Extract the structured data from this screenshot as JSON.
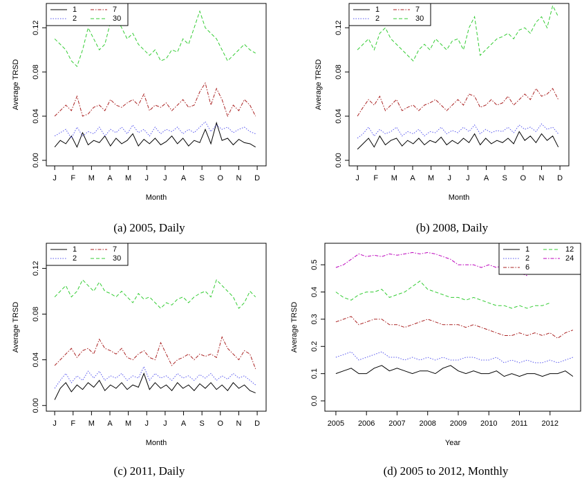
{
  "chart_data": [
    {
      "type": "line",
      "caption": "(a) 2005, Daily",
      "xlabel": "Month",
      "ylabel": "Average TRSD",
      "legend": "top-left",
      "xlim": [
        -14,
        380
      ],
      "ylim": [
        -0.005,
        0.142
      ],
      "xticks": [
        {
          "value": 1,
          "label": "J"
        },
        {
          "value": 34,
          "label": "F"
        },
        {
          "value": 67,
          "label": "M"
        },
        {
          "value": 100,
          "label": "A"
        },
        {
          "value": 133,
          "label": "M"
        },
        {
          "value": 166,
          "label": "J"
        },
        {
          "value": 199,
          "label": "J"
        },
        {
          "value": 232,
          "label": "A"
        },
        {
          "value": 265,
          "label": "S"
        },
        {
          "value": 298,
          "label": "O"
        },
        {
          "value": 331,
          "label": "N"
        },
        {
          "value": 364,
          "label": "D"
        }
      ],
      "yticks": [
        {
          "value": 0,
          "label": "0.00"
        },
        0.04,
        0.08,
        0.12
      ],
      "x": [
        1,
        11,
        21,
        31,
        41,
        51,
        61,
        71,
        81,
        91,
        101,
        111,
        121,
        131,
        141,
        151,
        161,
        171,
        181,
        191,
        201,
        211,
        221,
        231,
        241,
        251,
        261,
        271,
        281,
        291,
        301,
        311,
        321,
        331,
        341,
        351,
        361
      ],
      "series": [
        {
          "name": "1",
          "color": "#000000",
          "linestyle": "solid",
          "values": [
            0.012,
            0.018,
            0.015,
            0.022,
            0.012,
            0.025,
            0.014,
            0.018,
            0.016,
            0.022,
            0.013,
            0.02,
            0.015,
            0.018,
            0.024,
            0.013,
            0.019,
            0.015,
            0.02,
            0.014,
            0.017,
            0.022,
            0.015,
            0.02,
            0.013,
            0.018,
            0.016,
            0.028,
            0.015,
            0.034,
            0.018,
            0.02,
            0.014,
            0.019,
            0.016,
            0.015,
            0.012
          ]
        },
        {
          "name": "2",
          "color": "#5555ee",
          "linestyle": "dotted",
          "values": [
            0.022,
            0.025,
            0.028,
            0.02,
            0.03,
            0.022,
            0.026,
            0.024,
            0.03,
            0.022,
            0.028,
            0.025,
            0.03,
            0.024,
            0.032,
            0.025,
            0.028,
            0.022,
            0.03,
            0.024,
            0.028,
            0.026,
            0.03,
            0.024,
            0.028,
            0.025,
            0.03,
            0.035,
            0.026,
            0.032,
            0.028,
            0.03,
            0.025,
            0.028,
            0.03,
            0.026,
            0.024
          ]
        },
        {
          "name": "7",
          "color": "#aa2222",
          "linestyle": "dashdot",
          "values": [
            0.04,
            0.045,
            0.05,
            0.045,
            0.058,
            0.04,
            0.042,
            0.048,
            0.05,
            0.045,
            0.055,
            0.05,
            0.048,
            0.052,
            0.055,
            0.05,
            0.06,
            0.045,
            0.05,
            0.048,
            0.052,
            0.045,
            0.05,
            0.055,
            0.048,
            0.05,
            0.062,
            0.07,
            0.05,
            0.065,
            0.055,
            0.04,
            0.05,
            0.045,
            0.055,
            0.05,
            0.04
          ]
        },
        {
          "name": "30",
          "color": "#33cc33",
          "linestyle": "dashed",
          "values": [
            0.11,
            0.105,
            0.1,
            0.09,
            0.085,
            0.1,
            0.12,
            0.11,
            0.1,
            0.105,
            0.125,
            0.13,
            0.12,
            0.11,
            0.115,
            0.105,
            0.1,
            0.095,
            0.1,
            0.09,
            0.092,
            0.1,
            0.098,
            0.11,
            0.105,
            0.12,
            0.135,
            0.12,
            0.115,
            0.11,
            0.1,
            0.09,
            0.095,
            0.1,
            0.105,
            0.1,
            0.097
          ]
        }
      ]
    },
    {
      "type": "line",
      "caption": "(b) 2008, Daily",
      "xlabel": "Month",
      "ylabel": "Average TRSD",
      "legend": "top-left",
      "xlim": [
        -14,
        380
      ],
      "ylim": [
        -0.005,
        0.142
      ],
      "xticks": [
        {
          "value": 1,
          "label": "J"
        },
        {
          "value": 34,
          "label": "F"
        },
        {
          "value": 67,
          "label": "M"
        },
        {
          "value": 100,
          "label": "A"
        },
        {
          "value": 133,
          "label": "M"
        },
        {
          "value": 166,
          "label": "J"
        },
        {
          "value": 199,
          "label": "J"
        },
        {
          "value": 232,
          "label": "A"
        },
        {
          "value": 265,
          "label": "S"
        },
        {
          "value": 298,
          "label": "O"
        },
        {
          "value": 331,
          "label": "N"
        },
        {
          "value": 364,
          "label": "D"
        }
      ],
      "yticks": [
        {
          "value": 0,
          "label": "0.00"
        },
        0.04,
        0.08,
        0.12
      ],
      "x": [
        1,
        11,
        21,
        31,
        41,
        51,
        61,
        71,
        81,
        91,
        101,
        111,
        121,
        131,
        141,
        151,
        161,
        171,
        181,
        191,
        201,
        211,
        221,
        231,
        241,
        251,
        261,
        271,
        281,
        291,
        301,
        311,
        321,
        331,
        341,
        351,
        361
      ],
      "series": [
        {
          "name": "1",
          "color": "#000000",
          "linestyle": "solid",
          "values": [
            0.01,
            0.015,
            0.02,
            0.012,
            0.022,
            0.014,
            0.018,
            0.02,
            0.013,
            0.018,
            0.015,
            0.02,
            0.014,
            0.018,
            0.016,
            0.021,
            0.014,
            0.018,
            0.015,
            0.02,
            0.016,
            0.024,
            0.014,
            0.02,
            0.015,
            0.018,
            0.016,
            0.02,
            0.015,
            0.026,
            0.018,
            0.022,
            0.016,
            0.024,
            0.018,
            0.022,
            0.012
          ]
        },
        {
          "name": "2",
          "color": "#5555ee",
          "linestyle": "dotted",
          "values": [
            0.02,
            0.024,
            0.03,
            0.022,
            0.028,
            0.024,
            0.026,
            0.03,
            0.022,
            0.026,
            0.024,
            0.028,
            0.022,
            0.026,
            0.025,
            0.03,
            0.024,
            0.027,
            0.025,
            0.03,
            0.026,
            0.032,
            0.024,
            0.028,
            0.025,
            0.027,
            0.026,
            0.03,
            0.025,
            0.032,
            0.028,
            0.03,
            0.026,
            0.033,
            0.028,
            0.03,
            0.024
          ]
        },
        {
          "name": "7",
          "color": "#aa2222",
          "linestyle": "dashdot",
          "values": [
            0.04,
            0.048,
            0.055,
            0.05,
            0.058,
            0.045,
            0.05,
            0.055,
            0.045,
            0.048,
            0.05,
            0.045,
            0.05,
            0.052,
            0.055,
            0.05,
            0.045,
            0.05,
            0.055,
            0.05,
            0.06,
            0.058,
            0.048,
            0.05,
            0.055,
            0.05,
            0.052,
            0.058,
            0.05,
            0.055,
            0.06,
            0.055,
            0.065,
            0.058,
            0.06,
            0.065,
            0.055
          ]
        },
        {
          "name": "30",
          "color": "#33cc33",
          "linestyle": "dashed",
          "values": [
            0.1,
            0.105,
            0.11,
            0.1,
            0.115,
            0.12,
            0.11,
            0.105,
            0.1,
            0.095,
            0.09,
            0.1,
            0.105,
            0.1,
            0.11,
            0.105,
            0.1,
            0.108,
            0.11,
            0.1,
            0.12,
            0.13,
            0.095,
            0.1,
            0.105,
            0.11,
            0.112,
            0.115,
            0.11,
            0.118,
            0.12,
            0.115,
            0.125,
            0.13,
            0.12,
            0.14,
            0.13
          ]
        }
      ]
    },
    {
      "type": "line",
      "caption": "(c) 2011, Daily",
      "xlabel": "Month",
      "ylabel": "Average TRSD",
      "legend": "top-left",
      "xlim": [
        -14,
        380
      ],
      "ylim": [
        -0.005,
        0.142
      ],
      "xticks": [
        {
          "value": 1,
          "label": "J"
        },
        {
          "value": 34,
          "label": "F"
        },
        {
          "value": 67,
          "label": "M"
        },
        {
          "value": 100,
          "label": "A"
        },
        {
          "value": 133,
          "label": "M"
        },
        {
          "value": 166,
          "label": "J"
        },
        {
          "value": 199,
          "label": "J"
        },
        {
          "value": 232,
          "label": "A"
        },
        {
          "value": 265,
          "label": "S"
        },
        {
          "value": 298,
          "label": "O"
        },
        {
          "value": 331,
          "label": "N"
        },
        {
          "value": 364,
          "label": "D"
        }
      ],
      "yticks": [
        {
          "value": 0,
          "label": "0.00"
        },
        0.04,
        0.08,
        0.12
      ],
      "x": [
        1,
        11,
        21,
        31,
        41,
        51,
        61,
        71,
        81,
        91,
        101,
        111,
        121,
        131,
        141,
        151,
        161,
        171,
        181,
        191,
        201,
        211,
        221,
        231,
        241,
        251,
        261,
        271,
        281,
        291,
        301,
        311,
        321,
        331,
        341,
        351,
        361
      ],
      "series": [
        {
          "name": "1",
          "color": "#000000",
          "linestyle": "solid",
          "values": [
            0.005,
            0.015,
            0.02,
            0.012,
            0.018,
            0.014,
            0.02,
            0.016,
            0.022,
            0.013,
            0.018,
            0.015,
            0.02,
            0.014,
            0.018,
            0.016,
            0.028,
            0.014,
            0.02,
            0.015,
            0.018,
            0.013,
            0.02,
            0.015,
            0.018,
            0.013,
            0.019,
            0.015,
            0.02,
            0.014,
            0.018,
            0.013,
            0.02,
            0.015,
            0.018,
            0.013,
            0.011
          ]
        },
        {
          "name": "2",
          "color": "#5555ee",
          "linestyle": "dotted",
          "values": [
            0.015,
            0.022,
            0.028,
            0.02,
            0.026,
            0.022,
            0.03,
            0.024,
            0.03,
            0.022,
            0.026,
            0.024,
            0.028,
            0.022,
            0.026,
            0.024,
            0.034,
            0.022,
            0.028,
            0.024,
            0.026,
            0.022,
            0.028,
            0.024,
            0.026,
            0.022,
            0.027,
            0.024,
            0.028,
            0.022,
            0.026,
            0.023,
            0.028,
            0.024,
            0.026,
            0.022,
            0.018
          ]
        },
        {
          "name": "7",
          "color": "#aa2222",
          "linestyle": "dashdot",
          "values": [
            0.035,
            0.04,
            0.045,
            0.05,
            0.042,
            0.048,
            0.05,
            0.045,
            0.058,
            0.05,
            0.048,
            0.045,
            0.05,
            0.042,
            0.04,
            0.045,
            0.048,
            0.042,
            0.04,
            0.055,
            0.045,
            0.035,
            0.04,
            0.042,
            0.045,
            0.04,
            0.045,
            0.043,
            0.045,
            0.042,
            0.06,
            0.05,
            0.045,
            0.04,
            0.048,
            0.045,
            0.032
          ]
        },
        {
          "name": "30",
          "color": "#33cc33",
          "linestyle": "dashed",
          "values": [
            0.095,
            0.1,
            0.105,
            0.095,
            0.1,
            0.11,
            0.105,
            0.1,
            0.108,
            0.1,
            0.098,
            0.095,
            0.1,
            0.095,
            0.09,
            0.098,
            0.093,
            0.095,
            0.09,
            0.085,
            0.09,
            0.088,
            0.093,
            0.095,
            0.09,
            0.095,
            0.098,
            0.1,
            0.095,
            0.11,
            0.105,
            0.1,
            0.095,
            0.085,
            0.09,
            0.1,
            0.095
          ]
        }
      ]
    },
    {
      "type": "line",
      "caption": "(d) 2005 to 2012, Monthly",
      "xlabel": "Year",
      "ylabel": "Average TRSD",
      "legend": "top-right",
      "xlim": [
        2004.64,
        2013
      ],
      "ylim": [
        -0.038,
        0.579
      ],
      "xticks": [
        2005,
        2006,
        2007,
        2008,
        2009,
        2010,
        2011,
        2012
      ],
      "yticks": [
        {
          "value": 0,
          "label": "0.0"
        },
        0.1,
        0.2,
        0.3,
        0.4,
        0.5
      ],
      "x": [
        2005,
        2005.25,
        2005.5,
        2005.75,
        2006,
        2006.25,
        2006.5,
        2006.75,
        2007,
        2007.25,
        2007.5,
        2007.75,
        2008,
        2008.25,
        2008.5,
        2008.75,
        2009,
        2009.25,
        2009.5,
        2009.75,
        2010,
        2010.25,
        2010.5,
        2010.75,
        2011,
        2011.25,
        2011.5,
        2011.75,
        2012,
        2012.25,
        2012.5,
        2012.75
      ],
      "series": [
        {
          "name": "1",
          "color": "#000000",
          "linestyle": "solid",
          "values": [
            0.1,
            0.11,
            0.12,
            0.1,
            0.1,
            0.12,
            0.13,
            0.11,
            0.12,
            0.11,
            0.1,
            0.11,
            0.11,
            0.1,
            0.12,
            0.13,
            0.11,
            0.1,
            0.11,
            0.1,
            0.1,
            0.11,
            0.09,
            0.1,
            0.09,
            0.1,
            0.1,
            0.09,
            0.1,
            0.1,
            0.11,
            0.09
          ]
        },
        {
          "name": "2",
          "color": "#5555ee",
          "linestyle": "dotted",
          "values": [
            0.16,
            0.17,
            0.18,
            0.15,
            0.16,
            0.17,
            0.18,
            0.16,
            0.16,
            0.15,
            0.16,
            0.15,
            0.16,
            0.15,
            0.16,
            0.15,
            0.15,
            0.16,
            0.16,
            0.15,
            0.15,
            0.16,
            0.14,
            0.15,
            0.14,
            0.15,
            0.14,
            0.14,
            0.15,
            0.14,
            0.15,
            0.16
          ]
        },
        {
          "name": "6",
          "color": "#aa2222",
          "linestyle": "dashdot",
          "values": [
            0.29,
            0.3,
            0.31,
            0.28,
            0.29,
            0.3,
            0.3,
            0.28,
            0.28,
            0.27,
            0.28,
            0.29,
            0.3,
            0.29,
            0.28,
            0.28,
            0.28,
            0.27,
            0.28,
            0.27,
            0.26,
            0.25,
            0.24,
            0.24,
            0.25,
            0.24,
            0.25,
            0.24,
            0.25,
            0.23,
            0.25,
            0.26
          ]
        },
        {
          "name": "12",
          "color": "#33cc33",
          "linestyle": "dashed",
          "values": [
            0.4,
            0.38,
            0.37,
            0.39,
            0.4,
            0.4,
            0.41,
            0.38,
            0.39,
            0.4,
            0.42,
            0.44,
            0.41,
            0.4,
            0.39,
            0.38,
            0.38,
            0.37,
            0.38,
            0.37,
            0.36,
            0.35,
            0.35,
            0.34,
            0.35,
            0.34,
            0.35,
            0.35,
            0.36,
            null,
            null,
            null
          ]
        },
        {
          "name": "24",
          "color": "#bb00bb",
          "linestyle": "dashdot",
          "values": [
            0.49,
            0.5,
            0.52,
            0.54,
            0.53,
            0.535,
            0.53,
            0.54,
            0.535,
            0.54,
            0.545,
            0.54,
            0.545,
            0.54,
            0.53,
            0.52,
            0.5,
            0.5,
            0.5,
            0.49,
            0.5,
            0.49,
            0.5,
            0.48,
            0.47,
            0.46,
            null,
            null,
            null,
            null,
            null,
            null
          ]
        }
      ]
    }
  ]
}
